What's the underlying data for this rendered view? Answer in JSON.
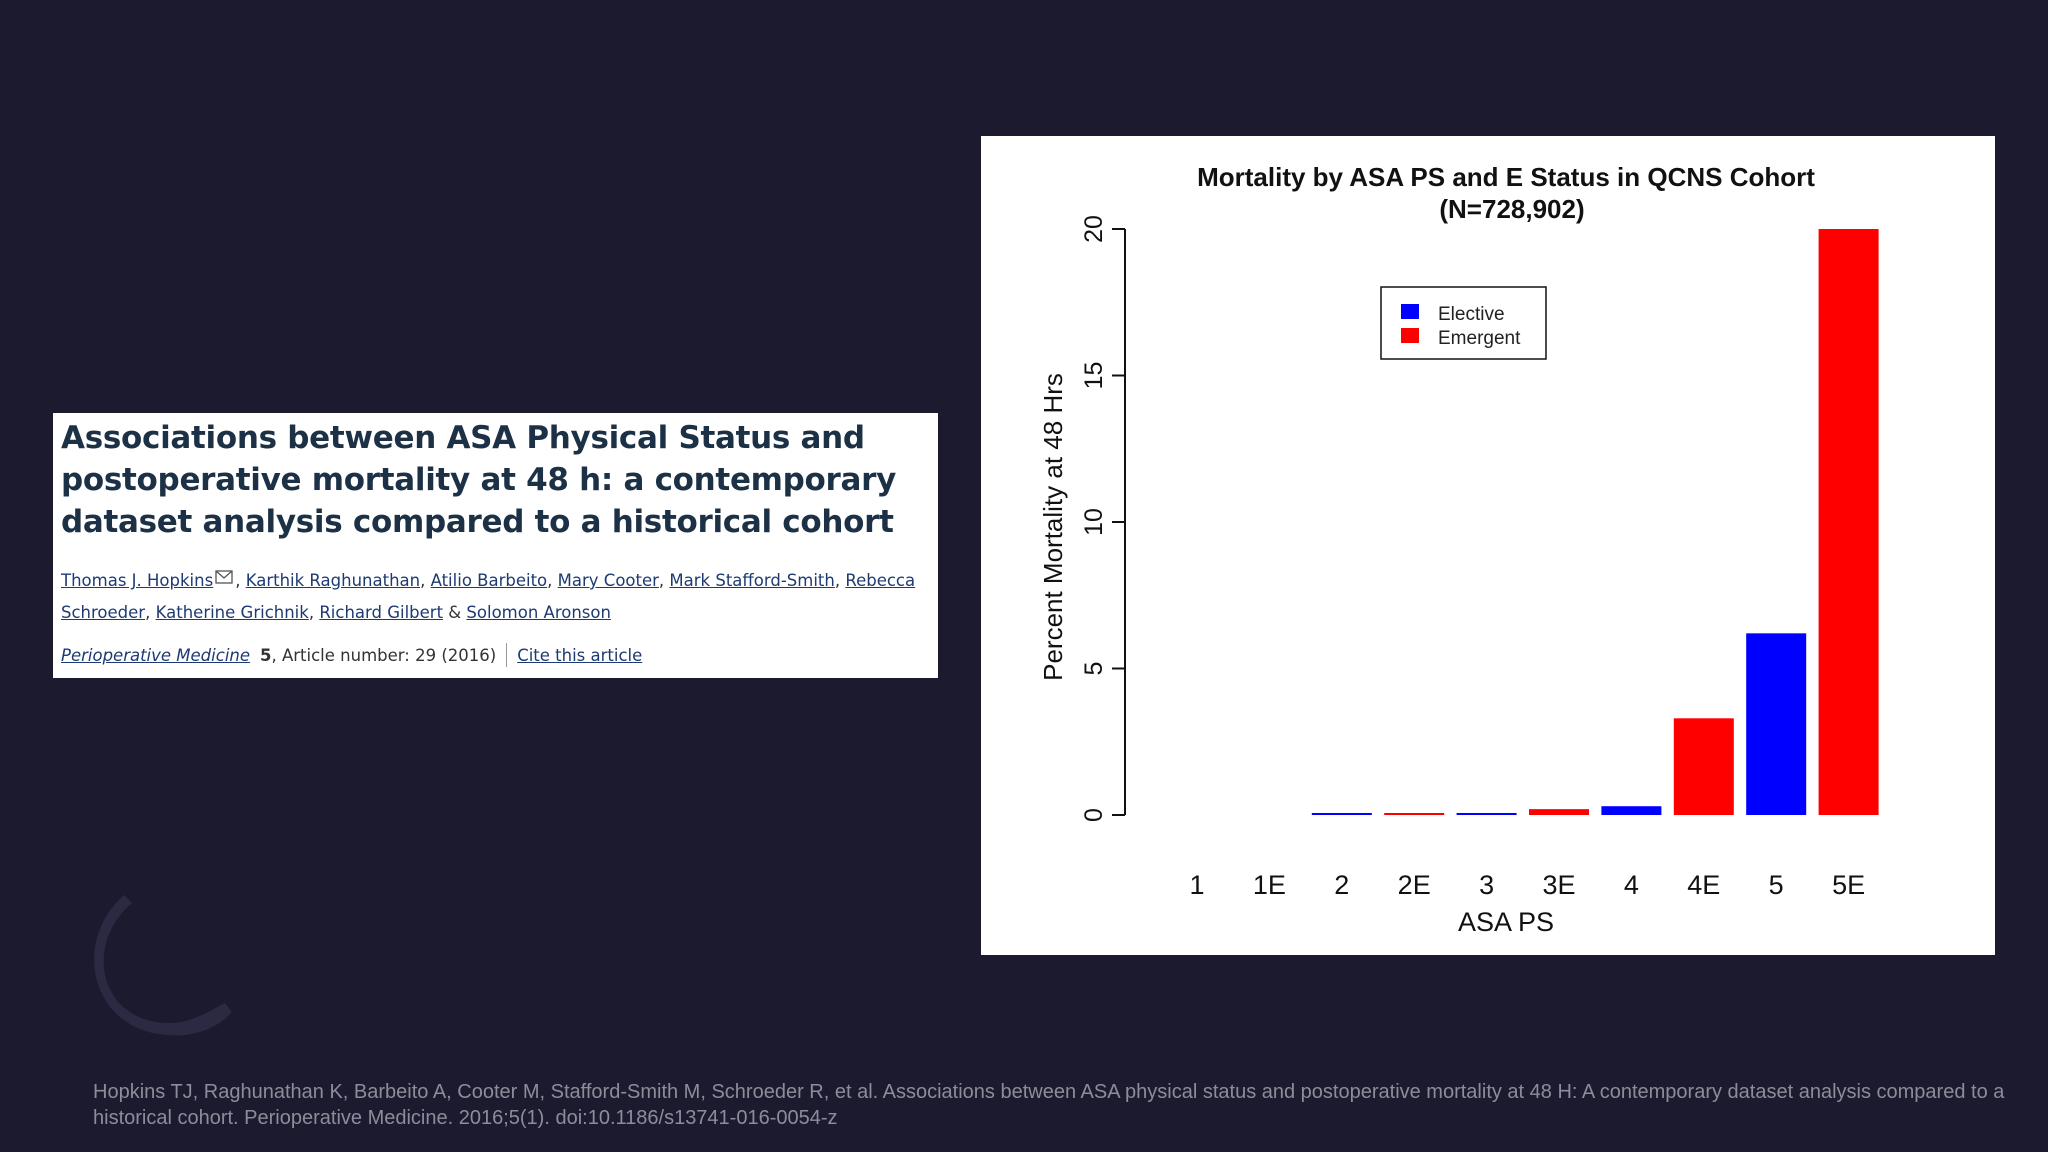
{
  "article": {
    "title": "Associations between ASA Physical Status and postoperative mortality at 48 h: a contemporary dataset analysis compared to a historical cohort",
    "authors": [
      {
        "name": "Thomas J. Hopkins",
        "sep": ", "
      },
      {
        "name": "Karthik Raghunathan",
        "sep": ", "
      },
      {
        "name": "Atilio Barbeito",
        "sep": ", "
      },
      {
        "name": "Mary Cooter",
        "sep": ", "
      },
      {
        "name": "Mark Stafford-Smith",
        "sep": ", "
      },
      {
        "name": "Rebecca Schroeder",
        "sep": ", "
      },
      {
        "name": "Katherine Grichnik",
        "sep": ", "
      },
      {
        "name": "Richard Gilbert",
        "sep": " & "
      },
      {
        "name": "Solomon Aronson",
        "sep": ""
      }
    ],
    "journal": "Perioperative Medicine",
    "volume": "5",
    "article_info": ", Article number: 29 (2016)",
    "cite_label": "Cite this article"
  },
  "chart_data": {
    "type": "bar",
    "title": "Mortality by ASA PS and E Status in QCNS Cohort",
    "subtitle": "(N=728,902)",
    "xlabel": "ASA PS",
    "ylabel": "Percent Mortality at 48 Hrs",
    "categories": [
      "1",
      "1E",
      "2",
      "2E",
      "3",
      "3E",
      "4",
      "4E",
      "5",
      "5E"
    ],
    "values": [
      0.0,
      0.0,
      0.05,
      0.05,
      0.05,
      0.2,
      0.3,
      3.3,
      6.2,
      20.0
    ],
    "status": [
      "Elective",
      "Emergent",
      "Elective",
      "Emergent",
      "Elective",
      "Emergent",
      "Elective",
      "Emergent",
      "Elective",
      "Emergent"
    ],
    "ylim": [
      0,
      20
    ],
    "yticks": [
      "0",
      "5",
      "10",
      "15",
      "20"
    ],
    "legend": {
      "position": "top-center",
      "entries": [
        {
          "label": "Elective",
          "color": "#0000ff"
        },
        {
          "label": "Emergent",
          "color": "#ff0000"
        }
      ]
    },
    "grid": false
  },
  "reference": {
    "text": "Hopkins TJ, Raghunathan K, Barbeito A, Cooter M, Stafford-Smith M, Schroeder R, et al. Associations between ASA physical status and postoperative mortality at 48 H: A contemporary dataset analysis compared to a historical cohort. Perioperative Medicine. 2016;5(1). doi:10.1186/s13741-016-0054-z"
  },
  "colors": {
    "background": "#1c1a2e",
    "elective": "#0000ff",
    "emergent": "#ff0000",
    "link": "#1d3a73"
  }
}
